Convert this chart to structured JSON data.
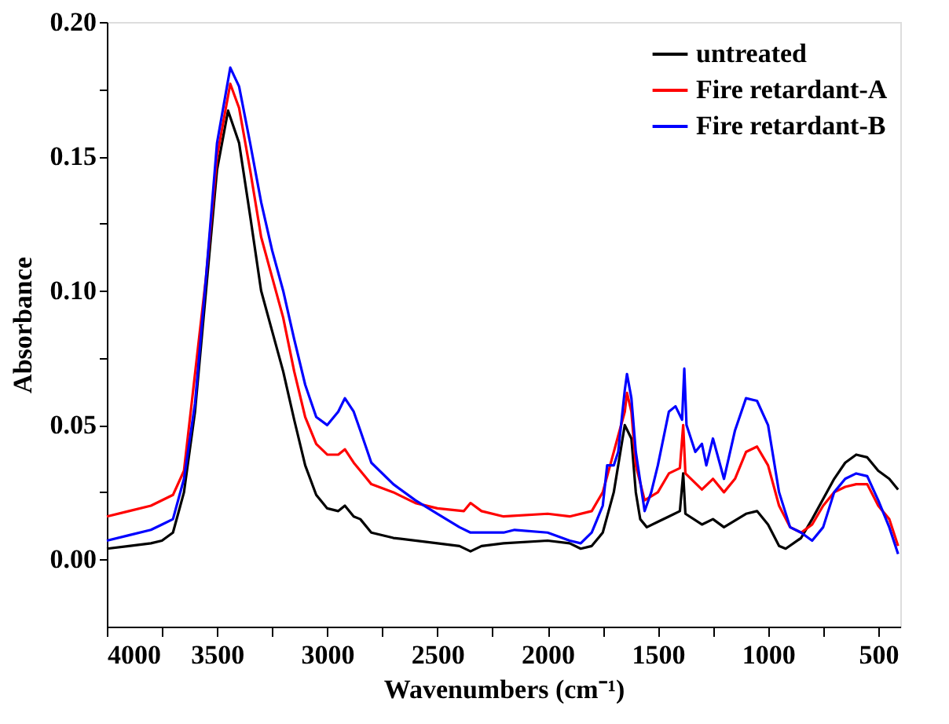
{
  "chart_data": {
    "type": "line",
    "xlabel": "Wavenumbers (cm⁻¹)",
    "ylabel": "Absorbance",
    "xlim": [
      4000,
      400
    ],
    "ylim": [
      -0.025,
      0.2
    ],
    "xticks": [
      4000,
      {
        "value": 3750,
        "label": null
      },
      3500,
      {
        "value": 3250,
        "label": null
      },
      3000,
      {
        "value": 2750,
        "label": null
      },
      2500,
      {
        "value": 2250,
        "label": null
      },
      2000,
      {
        "value": 1750,
        "label": null
      },
      1500,
      {
        "value": 1250,
        "label": null
      },
      1000,
      {
        "value": 750,
        "label": null
      },
      500
    ],
    "yticks": [
      {
        "value": 0.0,
        "label": "0.00"
      },
      {
        "value": 0.025,
        "label": null
      },
      {
        "value": 0.05,
        "label": "0.05"
      },
      {
        "value": 0.075,
        "label": null
      },
      {
        "value": 0.1,
        "label": "0.10"
      },
      {
        "value": 0.125,
        "label": null
      },
      {
        "value": 0.15,
        "label": "0.15"
      },
      {
        "value": 0.175,
        "label": null
      },
      {
        "value": 0.2,
        "label": "0.20"
      }
    ],
    "grid": false,
    "legend": "top right",
    "marker": "none",
    "line_style": "solid",
    "series": [
      {
        "name": "untreated",
        "color": "#000000",
        "x": [
          4000,
          3900,
          3800,
          3750,
          3700,
          3650,
          3600,
          3550,
          3500,
          3450,
          3400,
          3350,
          3300,
          3250,
          3200,
          3150,
          3100,
          3050,
          3000,
          2950,
          2920,
          2880,
          2850,
          2800,
          2700,
          2500,
          2400,
          2350,
          2300,
          2200,
          2000,
          1900,
          1850,
          1800,
          1750,
          1700,
          1680,
          1650,
          1620,
          1600,
          1580,
          1550,
          1500,
          1450,
          1400,
          1385,
          1375,
          1300,
          1250,
          1200,
          1100,
          1050,
          1000,
          950,
          920,
          850,
          800,
          700,
          650,
          600,
          550,
          500,
          450,
          410
        ],
        "values": [
          0.004,
          0.005,
          0.006,
          0.007,
          0.01,
          0.025,
          0.055,
          0.1,
          0.145,
          0.167,
          0.155,
          0.128,
          0.1,
          0.085,
          0.07,
          0.052,
          0.035,
          0.024,
          0.019,
          0.018,
          0.02,
          0.016,
          0.015,
          0.01,
          0.008,
          0.006,
          0.005,
          0.003,
          0.005,
          0.006,
          0.007,
          0.006,
          0.004,
          0.005,
          0.01,
          0.025,
          0.035,
          0.05,
          0.045,
          0.025,
          0.015,
          0.012,
          0.014,
          0.016,
          0.018,
          0.032,
          0.017,
          0.013,
          0.015,
          0.012,
          0.017,
          0.018,
          0.013,
          0.005,
          0.004,
          0.008,
          0.015,
          0.03,
          0.036,
          0.039,
          0.038,
          0.033,
          0.03,
          0.026
        ]
      },
      {
        "name": "Fire retardant-A",
        "color": "#ff0000",
        "x": [
          4000,
          3900,
          3800,
          3700,
          3650,
          3550,
          3500,
          3440,
          3400,
          3350,
          3300,
          3250,
          3200,
          3150,
          3100,
          3050,
          3000,
          2950,
          2920,
          2880,
          2830,
          2800,
          2700,
          2600,
          2500,
          2380,
          2350,
          2300,
          2200,
          2000,
          1900,
          1800,
          1750,
          1700,
          1680,
          1650,
          1640,
          1620,
          1600,
          1560,
          1500,
          1450,
          1400,
          1385,
          1375,
          1300,
          1250,
          1200,
          1150,
          1100,
          1050,
          1000,
          950,
          900,
          850,
          800,
          750,
          700,
          650,
          600,
          550,
          500,
          450,
          410
        ],
        "values": [
          0.016,
          0.018,
          0.02,
          0.024,
          0.033,
          0.105,
          0.15,
          0.177,
          0.168,
          0.145,
          0.12,
          0.105,
          0.09,
          0.07,
          0.053,
          0.043,
          0.039,
          0.039,
          0.041,
          0.036,
          0.031,
          0.028,
          0.025,
          0.021,
          0.019,
          0.018,
          0.021,
          0.018,
          0.016,
          0.017,
          0.016,
          0.018,
          0.025,
          0.04,
          0.046,
          0.055,
          0.062,
          0.055,
          0.035,
          0.022,
          0.025,
          0.032,
          0.034,
          0.05,
          0.032,
          0.026,
          0.03,
          0.025,
          0.03,
          0.04,
          0.042,
          0.035,
          0.02,
          0.012,
          0.01,
          0.013,
          0.02,
          0.025,
          0.027,
          0.028,
          0.028,
          0.02,
          0.015,
          0.005
        ]
      },
      {
        "name": "Fire retardant-B",
        "color": "#0000ff",
        "x": [
          4000,
          3900,
          3800,
          3750,
          3700,
          3650,
          3600,
          3550,
          3500,
          3440,
          3400,
          3350,
          3300,
          3250,
          3200,
          3150,
          3100,
          3050,
          3000,
          2950,
          2920,
          2880,
          2850,
          2800,
          2700,
          2600,
          2500,
          2400,
          2350,
          2300,
          2200,
          2150,
          2000,
          1900,
          1850,
          1800,
          1750,
          1730,
          1700,
          1680,
          1650,
          1640,
          1620,
          1600,
          1560,
          1530,
          1500,
          1450,
          1420,
          1390,
          1380,
          1370,
          1330,
          1300,
          1280,
          1250,
          1200,
          1150,
          1100,
          1050,
          1000,
          950,
          900,
          850,
          800,
          750,
          700,
          650,
          600,
          550,
          500,
          450,
          410
        ],
        "values": [
          0.007,
          0.009,
          0.011,
          0.013,
          0.015,
          0.03,
          0.058,
          0.105,
          0.155,
          0.183,
          0.176,
          0.155,
          0.133,
          0.115,
          0.1,
          0.082,
          0.065,
          0.053,
          0.05,
          0.055,
          0.06,
          0.055,
          0.048,
          0.036,
          0.028,
          0.022,
          0.017,
          0.012,
          0.01,
          0.01,
          0.01,
          0.011,
          0.01,
          0.007,
          0.006,
          0.01,
          0.02,
          0.035,
          0.035,
          0.04,
          0.063,
          0.069,
          0.06,
          0.04,
          0.018,
          0.025,
          0.035,
          0.055,
          0.057,
          0.052,
          0.071,
          0.05,
          0.04,
          0.043,
          0.035,
          0.045,
          0.03,
          0.048,
          0.06,
          0.059,
          0.05,
          0.025,
          0.012,
          0.01,
          0.007,
          0.012,
          0.025,
          0.03,
          0.032,
          0.031,
          0.022,
          0.012,
          0.002
        ]
      }
    ]
  }
}
